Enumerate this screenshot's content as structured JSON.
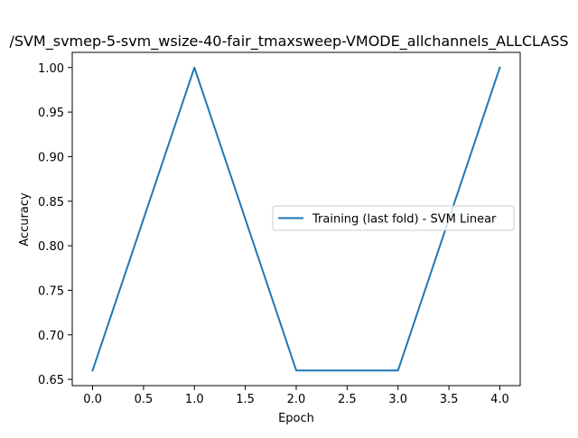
{
  "chart_data": {
    "type": "line",
    "title": "/SVM_svmep-5-svm_wsize-40-fair_tmaxsweep-VMODE_allchannels_ALLCLASS",
    "xlabel": "Epoch",
    "ylabel": "Accuracy",
    "xlim": [
      -0.2,
      4.2
    ],
    "ylim": [
      0.643,
      1.017
    ],
    "xticks": [
      "0.0",
      "0.5",
      "1.0",
      "1.5",
      "2.0",
      "2.5",
      "3.0",
      "3.5",
      "4.0"
    ],
    "yticks": [
      "0.65",
      "0.70",
      "0.75",
      "0.80",
      "0.85",
      "0.90",
      "0.95",
      "1.00"
    ],
    "grid": false,
    "legend_position": "center-right",
    "series": [
      {
        "name": "Training (last fold) - SVM Linear",
        "color": "#1f77b4",
        "x": [
          0,
          1,
          2,
          3,
          4
        ],
        "y": [
          0.66,
          1.0,
          0.66,
          0.66,
          1.0
        ]
      }
    ]
  }
}
